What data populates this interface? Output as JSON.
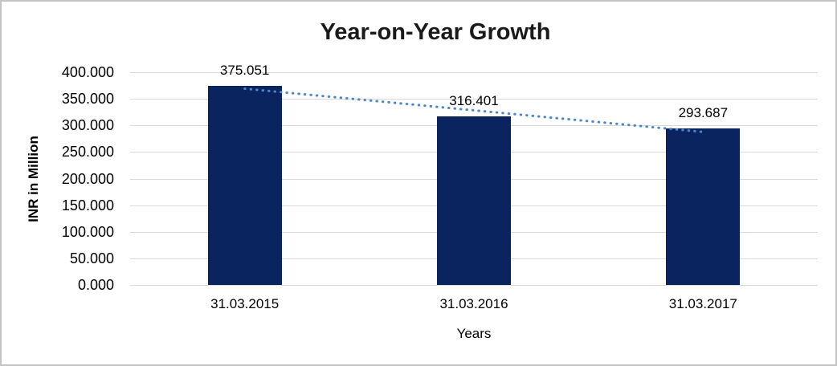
{
  "chart_data": {
    "type": "bar",
    "title": "Year-on-Year Growth",
    "xlabel": "Years",
    "ylabel": "INR in Million",
    "categories": [
      "31.03.2015",
      "31.03.2016",
      "31.03.2017"
    ],
    "values": [
      375.051,
      316.401,
      293.687
    ],
    "value_labels": [
      "375.051",
      "316.401",
      "293.687"
    ],
    "ylim": [
      0,
      400
    ],
    "ytick_step": 50,
    "yticks": [
      {
        "value": 400,
        "label": "400.000"
      },
      {
        "value": 350,
        "label": "350.000"
      },
      {
        "value": 300,
        "label": "300.000"
      },
      {
        "value": 250,
        "label": "250.000"
      },
      {
        "value": 200,
        "label": "200.000"
      },
      {
        "value": 150,
        "label": "150.000"
      },
      {
        "value": 100,
        "label": "100.000"
      },
      {
        "value": 50,
        "label": "50.000"
      },
      {
        "value": 0,
        "label": "0.000"
      }
    ],
    "grid": true,
    "legend": "none",
    "trendline": {
      "type": "linear",
      "style": "dotted",
      "color": "#4c87c9"
    },
    "colors": {
      "bar": "#0a2460",
      "gridline": "#d9d9d9",
      "title": "#1a1a1a",
      "text": "#000000",
      "chart_border": "#c4c4c4",
      "background": "#ffffff"
    }
  }
}
